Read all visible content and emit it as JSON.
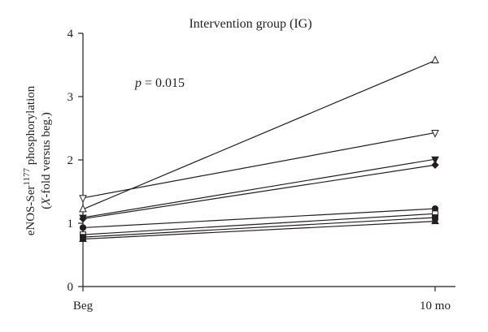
{
  "chart_data": {
    "type": "line",
    "title": "Intervention group (IG)",
    "annotation": {
      "prefix": "p",
      "text": " = 0.015"
    },
    "ylabel": {
      "line1": {
        "main": "eNOS-Ser",
        "sup": "1177",
        "rest": " phosphorylation"
      },
      "line2": {
        "open": "(",
        "italic": "X",
        "rest": "-fold versus beg.)"
      }
    },
    "xlabel": "",
    "categories": [
      "Beg",
      "10 mo"
    ],
    "ylim": [
      0,
      4
    ],
    "yticks": [
      0,
      1,
      2,
      3,
      4
    ],
    "yticklabels": [
      "0",
      "1",
      "2",
      "3",
      "4"
    ],
    "grid": false,
    "series": [
      {
        "values": [
          1.22,
          3.57
        ],
        "marker": "triangle-up-open"
      },
      {
        "values": [
          1.4,
          2.43
        ],
        "marker": "triangle-down-open"
      },
      {
        "values": [
          1.09,
          2.01
        ],
        "marker": "triangle-down-filled"
      },
      {
        "values": [
          1.07,
          1.92
        ],
        "marker": "diamond-filled"
      },
      {
        "values": [
          0.93,
          1.23
        ],
        "marker": "circle-filled"
      },
      {
        "values": [
          0.82,
          1.15
        ],
        "marker": "square-open"
      },
      {
        "values": [
          0.78,
          1.09
        ],
        "marker": "square-filled"
      },
      {
        "values": [
          0.75,
          1.03
        ],
        "marker": "triangle-up-filled"
      }
    ],
    "colors": {
      "ink": "#231f20",
      "background": "#ffffff"
    }
  }
}
